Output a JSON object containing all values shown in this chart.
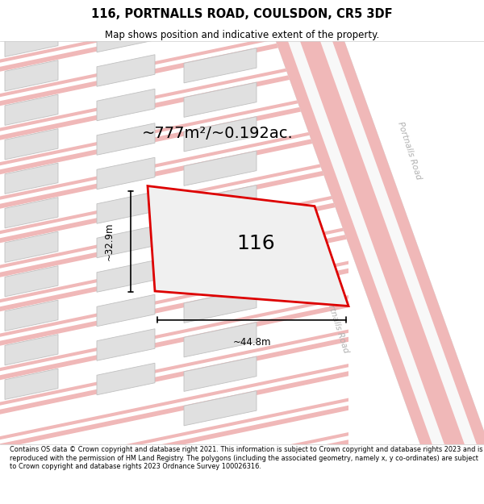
{
  "title_line1": "116, PORTNALLS ROAD, COULSDON, CR5 3DF",
  "title_line2": "Map shows position and indicative extent of the property.",
  "footer_text": "Contains OS data © Crown copyright and database right 2021. This information is subject to Crown copyright and database rights 2023 and is reproduced with the permission of HM Land Registry. The polygons (including the associated geometry, namely x, y co-ordinates) are subject to Crown copyright and database rights 2023 Ordnance Survey 100026316.",
  "area_label": "~777m²/~0.192ac.",
  "width_label": "~44.8m",
  "height_label": "~32.9m",
  "plot_number": "116",
  "bg_color": "#ffffff",
  "road_stripe_color": "#f0b8b8",
  "road_edge_color": "#d89898",
  "building_fill": "#e0e0e0",
  "building_edge_color": "#c0c0c0",
  "plot_outline_color": "#dd0000",
  "plot_fill": "#ffffff",
  "road_label_color": "#b0b0b0",
  "dim_line_color": "#000000",
  "title_fontsize": 10.5,
  "subtitle_fontsize": 8.5,
  "footer_fontsize": 5.9,
  "area_fontsize": 14,
  "dim_fontsize": 8.5,
  "plot_num_fontsize": 18,
  "road_label_fontsize": 7.5
}
